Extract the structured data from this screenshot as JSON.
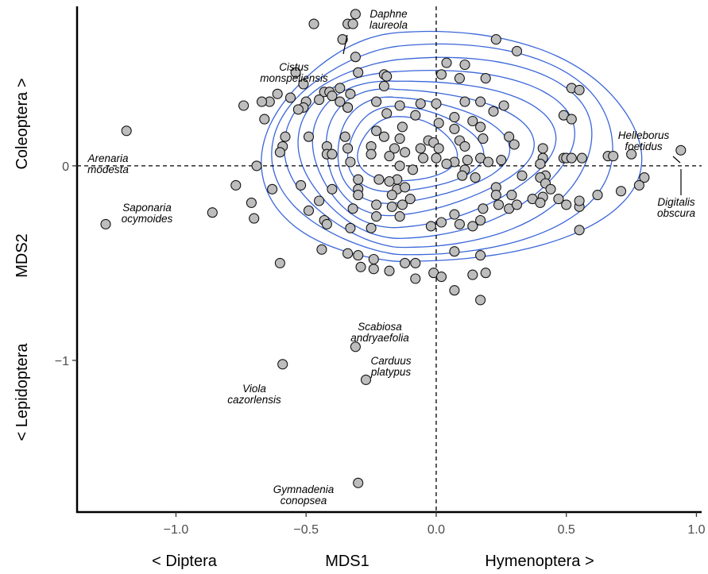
{
  "chart_data": {
    "type": "scatter",
    "xlabel": "MDS1",
    "ylabel": "MDS2",
    "x_direction_labels": {
      "left": "< Diptera",
      "right": "Hymenoptera >"
    },
    "y_direction_labels": {
      "bottom": "< Lepidoptera",
      "top": "Coleoptera >"
    },
    "xlim": [
      -1.38,
      1.02
    ],
    "ylim": [
      -1.78,
      0.82
    ],
    "x_ticks": [
      {
        "value": -1.0,
        "label": "−1.0"
      },
      {
        "value": -0.5,
        "label": "−0.5"
      },
      {
        "value": 0.0,
        "label": "0.0"
      },
      {
        "value": 0.5,
        "label": "0.5"
      },
      {
        "value": 1.0,
        "label": "1.0"
      }
    ],
    "y_ticks": [
      {
        "value": -1,
        "label": "−1"
      },
      {
        "value": 0,
        "label": "0"
      }
    ],
    "reference_lines": {
      "x": 0,
      "y": 0,
      "style": "dashed"
    },
    "grid": false,
    "colors": {
      "points_fill": "#bdbdbd",
      "points_stroke": "#111111",
      "contours": "#3a66d9"
    },
    "density_contours": {
      "count": 9,
      "center": [
        -0.15,
        0.07
      ],
      "shown": true
    },
    "points": [
      {
        "x": -1.19,
        "y": 0.18
      },
      {
        "x": -1.27,
        "y": -0.3
      },
      {
        "x": -0.59,
        "y": -1.02
      },
      {
        "x": -0.31,
        "y": -0.93
      },
      {
        "x": -0.27,
        "y": -1.1
      },
      {
        "x": -0.3,
        "y": -1.63
      },
      {
        "x": 0.94,
        "y": 0.08
      },
      {
        "x": -0.47,
        "y": 0.73
      },
      {
        "x": -0.34,
        "y": 0.73
      },
      {
        "x": -0.31,
        "y": 0.78
      },
      {
        "x": -0.32,
        "y": 0.73
      },
      {
        "x": -0.36,
        "y": 0.65
      },
      {
        "x": 0.23,
        "y": 0.65
      },
      {
        "x": 0.31,
        "y": 0.59
      },
      {
        "x": -0.31,
        "y": 0.56
      },
      {
        "x": 0.04,
        "y": 0.53
      },
      {
        "x": 0.11,
        "y": 0.52
      },
      {
        "x": -0.2,
        "y": 0.47
      },
      {
        "x": -0.19,
        "y": 0.46
      },
      {
        "x": -0.3,
        "y": 0.48
      },
      {
        "x": -0.54,
        "y": 0.48
      },
      {
        "x": 0.02,
        "y": 0.47
      },
      {
        "x": 0.09,
        "y": 0.45
      },
      {
        "x": 0.19,
        "y": 0.45
      },
      {
        "x": -0.51,
        "y": 0.42
      },
      {
        "x": -0.2,
        "y": 0.41
      },
      {
        "x": -0.37,
        "y": 0.4
      },
      {
        "x": -0.43,
        "y": 0.38
      },
      {
        "x": -0.41,
        "y": 0.38
      },
      {
        "x": -0.33,
        "y": 0.37
      },
      {
        "x": -0.4,
        "y": 0.36
      },
      {
        "x": -0.61,
        "y": 0.37
      },
      {
        "x": -0.64,
        "y": 0.33
      },
      {
        "x": -0.74,
        "y": 0.31
      },
      {
        "x": -0.56,
        "y": 0.35
      },
      {
        "x": -0.45,
        "y": 0.34
      },
      {
        "x": -0.5,
        "y": 0.33
      },
      {
        "x": -0.51,
        "y": 0.3
      },
      {
        "x": -0.37,
        "y": 0.33
      },
      {
        "x": -0.34,
        "y": 0.3
      },
      {
        "x": -0.23,
        "y": 0.33
      },
      {
        "x": -0.14,
        "y": 0.31
      },
      {
        "x": -0.06,
        "y": 0.32
      },
      {
        "x": 0.0,
        "y": 0.32
      },
      {
        "x": 0.11,
        "y": 0.33
      },
      {
        "x": 0.17,
        "y": 0.33
      },
      {
        "x": -0.34,
        "y": 0.3
      },
      {
        "x": -0.67,
        "y": 0.33
      },
      {
        "x": 0.52,
        "y": 0.4
      },
      {
        "x": 0.55,
        "y": 0.39
      },
      {
        "x": -0.53,
        "y": 0.29
      },
      {
        "x": -0.19,
        "y": 0.27
      },
      {
        "x": -0.08,
        "y": 0.26
      },
      {
        "x": 0.07,
        "y": 0.25
      },
      {
        "x": 0.14,
        "y": 0.23
      },
      {
        "x": 0.22,
        "y": 0.28
      },
      {
        "x": 0.26,
        "y": 0.31
      },
      {
        "x": 0.49,
        "y": 0.26
      },
      {
        "x": 0.52,
        "y": 0.24
      },
      {
        "x": -0.66,
        "y": 0.24
      },
      {
        "x": -0.13,
        "y": 0.2
      },
      {
        "x": -0.23,
        "y": 0.18
      },
      {
        "x": 0.01,
        "y": 0.22
      },
      {
        "x": 0.07,
        "y": 0.19
      },
      {
        "x": 0.17,
        "y": 0.2
      },
      {
        "x": 0.28,
        "y": 0.15
      },
      {
        "x": -0.58,
        "y": 0.15
      },
      {
        "x": -0.49,
        "y": 0.15
      },
      {
        "x": -0.35,
        "y": 0.15
      },
      {
        "x": -0.2,
        "y": 0.15
      },
      {
        "x": -0.14,
        "y": 0.14
      },
      {
        "x": -0.03,
        "y": 0.13
      },
      {
        "x": 0.09,
        "y": 0.13
      },
      {
        "x": 0.18,
        "y": 0.14
      },
      {
        "x": -0.59,
        "y": 0.1
      },
      {
        "x": -0.42,
        "y": 0.1
      },
      {
        "x": -0.25,
        "y": 0.1
      },
      {
        "x": -0.16,
        "y": 0.09
      },
      {
        "x": -0.06,
        "y": 0.09
      },
      {
        "x": -0.01,
        "y": 0.12
      },
      {
        "x": 0.01,
        "y": 0.09
      },
      {
        "x": 0.11,
        "y": 0.1
      },
      {
        "x": 0.3,
        "y": 0.11
      },
      {
        "x": 0.41,
        "y": 0.09
      },
      {
        "x": -0.6,
        "y": 0.07
      },
      {
        "x": -0.42,
        "y": 0.06
      },
      {
        "x": -0.4,
        "y": 0.06
      },
      {
        "x": -0.34,
        "y": 0.09
      },
      {
        "x": -0.25,
        "y": 0.06
      },
      {
        "x": -0.18,
        "y": 0.05
      },
      {
        "x": -0.12,
        "y": 0.07
      },
      {
        "x": -0.05,
        "y": 0.04
      },
      {
        "x": 0.0,
        "y": 0.04
      },
      {
        "x": 0.07,
        "y": 0.02
      },
      {
        "x": 0.12,
        "y": 0.03
      },
      {
        "x": 0.17,
        "y": 0.04
      },
      {
        "x": 0.25,
        "y": 0.03
      },
      {
        "x": 0.41,
        "y": 0.04
      },
      {
        "x": 0.49,
        "y": 0.04
      },
      {
        "x": 0.5,
        "y": 0.04
      },
      {
        "x": 0.52,
        "y": 0.04
      },
      {
        "x": 0.56,
        "y": 0.04
      },
      {
        "x": 0.66,
        "y": 0.05
      },
      {
        "x": 0.68,
        "y": 0.05
      },
      {
        "x": 0.75,
        "y": 0.06
      },
      {
        "x": -0.69,
        "y": 0.0
      },
      {
        "x": -0.33,
        "y": 0.02
      },
      {
        "x": -0.14,
        "y": 0.0
      },
      {
        "x": -0.09,
        "y": -0.02
      },
      {
        "x": 0.04,
        "y": 0.01
      },
      {
        "x": 0.2,
        "y": 0.02
      },
      {
        "x": 0.4,
        "y": 0.01
      },
      {
        "x": 0.11,
        "y": -0.02
      },
      {
        "x": -0.3,
        "y": -0.07
      },
      {
        "x": -0.22,
        "y": -0.07
      },
      {
        "x": -0.15,
        "y": -0.07
      },
      {
        "x": 0.1,
        "y": -0.05
      },
      {
        "x": 0.15,
        "y": -0.06
      },
      {
        "x": 0.33,
        "y": -0.05
      },
      {
        "x": 0.42,
        "y": -0.05
      },
      {
        "x": 0.4,
        "y": -0.06
      },
      {
        "x": 0.8,
        "y": -0.06
      },
      {
        "x": -0.77,
        "y": -0.1
      },
      {
        "x": -0.52,
        "y": -0.1
      },
      {
        "x": -0.18,
        "y": -0.08
      },
      {
        "x": -0.3,
        "y": -0.12
      },
      {
        "x": -0.15,
        "y": -0.12
      },
      {
        "x": -0.12,
        "y": -0.11
      },
      {
        "x": 0.23,
        "y": -0.11
      },
      {
        "x": 0.42,
        "y": -0.09
      },
      {
        "x": 0.44,
        "y": -0.12
      },
      {
        "x": 0.78,
        "y": -0.1
      },
      {
        "x": -0.63,
        "y": -0.12
      },
      {
        "x": -0.4,
        "y": -0.12
      },
      {
        "x": -0.3,
        "y": -0.15
      },
      {
        "x": -0.17,
        "y": -0.15
      },
      {
        "x": -0.1,
        "y": -0.17
      },
      {
        "x": 0.23,
        "y": -0.15
      },
      {
        "x": 0.37,
        "y": -0.17
      },
      {
        "x": 0.41,
        "y": -0.16
      },
      {
        "x": 0.47,
        "y": -0.17
      },
      {
        "x": 0.62,
        "y": -0.15
      },
      {
        "x": 0.71,
        "y": -0.13
      },
      {
        "x": -0.45,
        "y": -0.18
      },
      {
        "x": -0.23,
        "y": -0.2
      },
      {
        "x": -0.13,
        "y": -0.2
      },
      {
        "x": 0.24,
        "y": -0.2
      },
      {
        "x": 0.29,
        "y": -0.15
      },
      {
        "x": 0.5,
        "y": -0.2
      },
      {
        "x": 0.55,
        "y": -0.21
      },
      {
        "x": -0.71,
        "y": -0.19
      },
      {
        "x": -0.86,
        "y": -0.24
      },
      {
        "x": -0.49,
        "y": -0.23
      },
      {
        "x": -0.32,
        "y": -0.22
      },
      {
        "x": -0.17,
        "y": -0.21
      },
      {
        "x": 0.18,
        "y": -0.22
      },
      {
        "x": 0.28,
        "y": -0.22
      },
      {
        "x": 0.31,
        "y": -0.2
      },
      {
        "x": 0.4,
        "y": -0.19
      },
      {
        "x": 0.55,
        "y": -0.18
      },
      {
        "x": -0.7,
        "y": -0.27
      },
      {
        "x": -0.43,
        "y": -0.28
      },
      {
        "x": -0.23,
        "y": -0.26
      },
      {
        "x": -0.14,
        "y": -0.26
      },
      {
        "x": 0.07,
        "y": -0.25
      },
      {
        "x": 0.17,
        "y": -0.28
      },
      {
        "x": -0.42,
        "y": -0.3
      },
      {
        "x": -0.33,
        "y": -0.32
      },
      {
        "x": -0.25,
        "y": -0.32
      },
      {
        "x": -0.02,
        "y": -0.31
      },
      {
        "x": 0.02,
        "y": -0.29
      },
      {
        "x": 0.09,
        "y": -0.3
      },
      {
        "x": 0.14,
        "y": -0.31
      },
      {
        "x": 0.55,
        "y": -0.33
      },
      {
        "x": -0.44,
        "y": -0.43
      },
      {
        "x": -0.34,
        "y": -0.45
      },
      {
        "x": -0.3,
        "y": -0.46
      },
      {
        "x": -0.24,
        "y": -0.48
      },
      {
        "x": -0.12,
        "y": -0.5
      },
      {
        "x": -0.08,
        "y": -0.5
      },
      {
        "x": 0.07,
        "y": -0.44
      },
      {
        "x": 0.17,
        "y": -0.46
      },
      {
        "x": -0.6,
        "y": -0.5
      },
      {
        "x": -0.29,
        "y": -0.52
      },
      {
        "x": -0.24,
        "y": -0.53
      },
      {
        "x": -0.18,
        "y": -0.54
      },
      {
        "x": -0.01,
        "y": -0.55
      },
      {
        "x": 0.19,
        "y": -0.55
      },
      {
        "x": 0.14,
        "y": -0.56
      },
      {
        "x": 0.02,
        "y": -0.57
      },
      {
        "x": 0.07,
        "y": -0.64
      },
      {
        "x": -0.08,
        "y": -0.58
      },
      {
        "x": 0.17,
        "y": -0.69
      }
    ],
    "annotations": [
      {
        "lines": [
          "Daphne",
          "laureola"
        ]
      },
      {
        "lines": [
          "Cistus",
          "monspeliensis"
        ]
      },
      {
        "lines": [
          "Arenaria",
          "modesta"
        ]
      },
      {
        "lines": [
          "Saponaria",
          "ocymoides"
        ]
      },
      {
        "lines": [
          "Helleborus",
          "foetidus"
        ]
      },
      {
        "lines": [
          "Digitalis",
          "obscura"
        ]
      },
      {
        "lines": [
          "Scabiosa",
          "andryaefolia"
        ]
      },
      {
        "lines": [
          "Carduus",
          "platypus"
        ]
      },
      {
        "lines": [
          "Viola",
          "cazorlensis"
        ]
      },
      {
        "lines": [
          "Gymnadenia",
          "conopsea"
        ]
      }
    ]
  }
}
